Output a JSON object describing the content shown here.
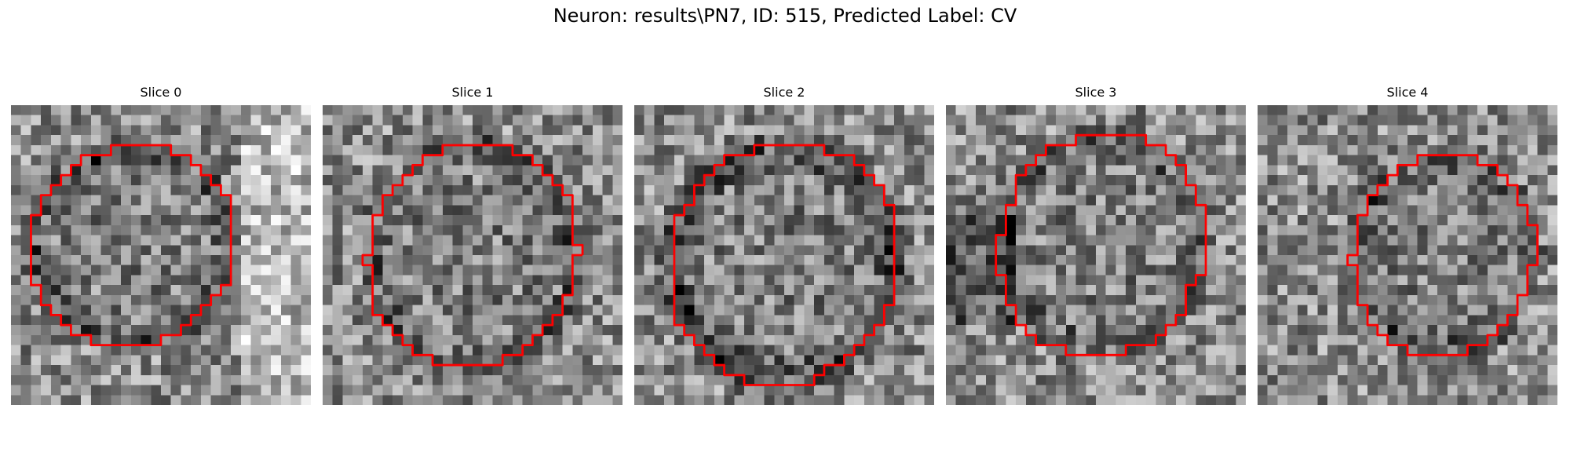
{
  "figure": {
    "title": "Neuron: results\\PN7, ID: 515, Predicted Label: CV",
    "contour_color": "#ff0000",
    "colormap": "grayscale",
    "grid_size": 30,
    "panels": [
      {
        "title": "Slice 0",
        "seed": 11,
        "center": [
          12.2,
          14.0
        ],
        "radius": [
          10.8,
          10.4
        ],
        "ring_dark": 0.35,
        "bright_side": "right"
      },
      {
        "title": "Slice 1",
        "seed": 23,
        "center": [
          15.0,
          15.0
        ],
        "radius": [
          11.1,
          11.9
        ],
        "ring_dark": 0.3,
        "bright_side": "none"
      },
      {
        "title": "Slice 2",
        "seed": 37,
        "center": [
          15.0,
          15.8
        ],
        "radius": [
          12.1,
          12.8
        ],
        "ring_dark": 0.45,
        "bright_side": "none"
      },
      {
        "title": "Slice 3",
        "seed": 41,
        "center": [
          15.6,
          14.0
        ],
        "radius": [
          10.8,
          11.6
        ],
        "ring_dark": 0.3,
        "bright_side": "left-dark"
      },
      {
        "title": "Slice 4",
        "seed": 53,
        "center": [
          18.6,
          15.0
        ],
        "radius": [
          9.6,
          10.8
        ],
        "ring_dark": 0.3,
        "bright_side": "none"
      }
    ]
  }
}
